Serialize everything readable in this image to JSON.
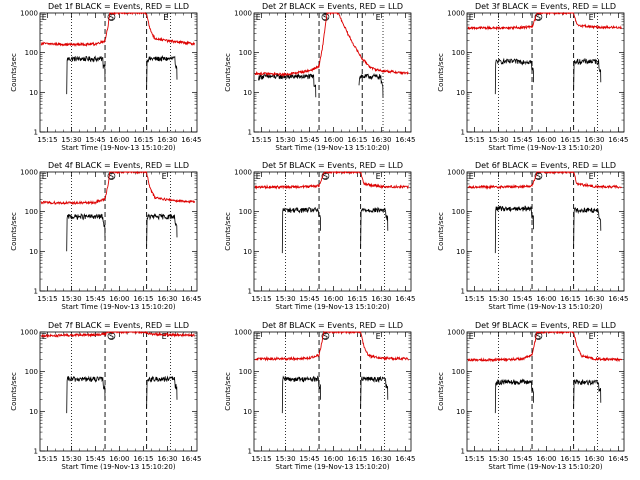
{
  "figure": {
    "start_time_label": "Start Time (19-Nov-13 15:10:20)",
    "y_axis_label": "Counts/sec",
    "colors": {
      "events": "#000000",
      "lld": "#dd0000",
      "axes": "#000000"
    }
  },
  "chart_data": [
    {
      "type": "line",
      "title": "Det 1f BLACK = Events, RED = LLD",
      "xlabel": "Start Time (19-Nov-13 15:10:20)",
      "ylabel": "Counts/sec",
      "yscale": "log",
      "ylim": [
        1,
        1000
      ],
      "x_tick_labels": [
        "15:15",
        "15:30",
        "15:45",
        "16:00",
        "16:15",
        "16:30",
        "16:45"
      ],
      "markers": [
        {
          "label": "E",
          "time": "15:13"
        },
        {
          "label": "S",
          "time": "15:55"
        },
        {
          "label": "E",
          "time": "16:29"
        }
      ],
      "dotted_lines": [
        "15:30",
        "16:32"
      ],
      "dashed_lines": [
        "15:51",
        "16:17"
      ],
      "series": [
        {
          "name": "Events",
          "color": "#000000",
          "segments": [
            {
              "start": "15:27",
              "end": "15:51",
              "base": 70,
              "spike": 9
            },
            {
              "start": "16:17",
              "end": "16:36",
              "base": 70,
              "spike": 12
            }
          ]
        },
        {
          "name": "LLD",
          "color": "#dd0000",
          "points": [
            [
              "15:11",
              170
            ],
            [
              "15:30",
              160
            ],
            [
              "15:45",
              165
            ],
            [
              "15:51",
              200
            ],
            [
              "15:53",
              500
            ],
            [
              "15:54",
              1000
            ],
            [
              "16:17",
              1000
            ],
            [
              "16:19",
              400
            ],
            [
              "16:22",
              230
            ],
            [
              "16:30",
              200
            ],
            [
              "16:45",
              170
            ],
            [
              "16:47",
              170
            ]
          ]
        }
      ]
    },
    {
      "type": "line",
      "title": "Det 2f BLACK = Events, RED = LLD",
      "xlabel": "Start Time (19-Nov-13 15:10:20)",
      "ylabel": "Counts/sec",
      "yscale": "log",
      "ylim": [
        1,
        1000
      ],
      "x_tick_labels": [
        "15:15",
        "15:30",
        "15:45",
        "16:00",
        "16:15",
        "16:30",
        "16:45"
      ],
      "markers": [
        {
          "label": "E",
          "time": "15:13"
        },
        {
          "label": "S",
          "time": "15:55"
        },
        {
          "label": "E",
          "time": "16:28"
        }
      ],
      "dotted_lines": [
        "15:30",
        "16:31"
      ],
      "dashed_lines": [
        "15:51",
        "16:18"
      ],
      "series": [
        {
          "name": "Events",
          "color": "#000000",
          "segments": [
            {
              "start": "15:13",
              "end": "15:49",
              "base": 25,
              "spike": 20
            },
            {
              "start": "16:16",
              "end": "16:31",
              "base": 25,
              "spike": 15
            }
          ]
        },
        {
          "name": "LLD",
          "color": "#dd0000",
          "points": [
            [
              "15:11",
              30
            ],
            [
              "15:30",
              28
            ],
            [
              "15:45",
              35
            ],
            [
              "15:51",
              45
            ],
            [
              "15:53",
              120
            ],
            [
              "15:56",
              1000
            ],
            [
              "16:03",
              1000
            ],
            [
              "16:09",
              300
            ],
            [
              "16:13",
              150
            ],
            [
              "16:18",
              70
            ],
            [
              "16:24",
              40
            ],
            [
              "16:30",
              35
            ],
            [
              "16:47",
              30
            ]
          ]
        }
      ]
    },
    {
      "type": "line",
      "title": "Det 3f BLACK = Events, RED = LLD",
      "xlabel": "Start Time (19-Nov-13 15:10:20)",
      "ylabel": "Counts/sec",
      "yscale": "log",
      "ylim": [
        1,
        1000
      ],
      "x_tick_labels": [
        "15:15",
        "15:30",
        "15:45",
        "16:00",
        "16:15",
        "16:30",
        "16:45"
      ],
      "markers": [
        {
          "label": "E",
          "time": "15:13"
        },
        {
          "label": "S",
          "time": "15:55"
        },
        {
          "label": "E",
          "time": "16:28"
        }
      ],
      "dotted_lines": [
        "15:30",
        "16:32"
      ],
      "dashed_lines": [
        "15:51",
        "16:17"
      ],
      "series": [
        {
          "name": "Events",
          "color": "#000000",
          "segments": [
            {
              "start": "15:28",
              "end": "15:52",
              "base": 60,
              "spike": 9
            },
            {
              "start": "16:17",
              "end": "16:34",
              "base": 60,
              "spike": 11
            }
          ]
        },
        {
          "name": "LLD",
          "color": "#dd0000",
          "points": [
            [
              "15:11",
              420
            ],
            [
              "15:30",
              420
            ],
            [
              "15:45",
              430
            ],
            [
              "15:51",
              450
            ],
            [
              "15:53",
              700
            ],
            [
              "15:54",
              1000
            ],
            [
              "16:17",
              1000
            ],
            [
              "16:19",
              500
            ],
            [
              "16:30",
              440
            ],
            [
              "16:47",
              430
            ]
          ]
        }
      ]
    },
    {
      "type": "line",
      "title": "Det 4f BLACK = Events, RED = LLD",
      "xlabel": "Start Time (19-Nov-13 15:10:20)",
      "ylabel": "Counts/sec",
      "yscale": "log",
      "ylim": [
        1,
        1000
      ],
      "x_tick_labels": [
        "15:15",
        "15:30",
        "15:45",
        "16:00",
        "16:15",
        "16:30",
        "16:45"
      ],
      "markers": [
        {
          "label": "E",
          "time": "15:13"
        },
        {
          "label": "S",
          "time": "15:55"
        },
        {
          "label": "E",
          "time": "16:28"
        }
      ],
      "dotted_lines": [
        "15:30",
        "16:32"
      ],
      "dashed_lines": [
        "15:51",
        "16:17"
      ],
      "series": [
        {
          "name": "Events",
          "color": "#000000",
          "segments": [
            {
              "start": "15:27",
              "end": "15:51",
              "base": 75,
              "spike": 10
            },
            {
              "start": "16:17",
              "end": "16:36",
              "base": 75,
              "spike": 13
            }
          ]
        },
        {
          "name": "LLD",
          "color": "#dd0000",
          "points": [
            [
              "15:11",
              170
            ],
            [
              "15:30",
              165
            ],
            [
              "15:45",
              170
            ],
            [
              "15:51",
              210
            ],
            [
              "15:53",
              500
            ],
            [
              "15:54",
              1000
            ],
            [
              "16:17",
              1000
            ],
            [
              "16:19",
              400
            ],
            [
              "16:22",
              230
            ],
            [
              "16:30",
              200
            ],
            [
              "16:47",
              175
            ]
          ]
        }
      ]
    },
    {
      "type": "line",
      "title": "Det 5f BLACK = Events, RED = LLD",
      "xlabel": "Start Time (19-Nov-13 15:10:20)",
      "ylabel": "Counts/sec",
      "yscale": "log",
      "ylim": [
        1,
        1000
      ],
      "x_tick_labels": [
        "15:15",
        "15:30",
        "15:45",
        "16:00",
        "16:15",
        "16:30",
        "16:45"
      ],
      "markers": [
        {
          "label": "E",
          "time": "15:13"
        },
        {
          "label": "S",
          "time": "15:55"
        },
        {
          "label": "E",
          "time": "16:28"
        }
      ],
      "dotted_lines": [
        "15:30",
        "16:32"
      ],
      "dashed_lines": [
        "15:51",
        "16:17"
      ],
      "series": [
        {
          "name": "Events",
          "color": "#000000",
          "segments": [
            {
              "start": "15:28",
              "end": "15:52",
              "base": 110,
              "spike": 9
            },
            {
              "start": "16:17",
              "end": "16:34",
              "base": 110,
              "spike": 12
            }
          ]
        },
        {
          "name": "LLD",
          "color": "#dd0000",
          "points": [
            [
              "15:11",
              420
            ],
            [
              "15:30",
              420
            ],
            [
              "15:45",
              430
            ],
            [
              "15:51",
              450
            ],
            [
              "15:53",
              700
            ],
            [
              "15:54",
              1000
            ],
            [
              "16:17",
              1000
            ],
            [
              "16:19",
              500
            ],
            [
              "16:30",
              430
            ],
            [
              "16:47",
              420
            ]
          ]
        }
      ]
    },
    {
      "type": "line",
      "title": "Det 6f BLACK = Events, RED = LLD",
      "xlabel": "Start Time (19-Nov-13 15:10:20)",
      "ylabel": "Counts/sec",
      "yscale": "log",
      "ylim": [
        1,
        1000
      ],
      "x_tick_labels": [
        "15:15",
        "15:30",
        "15:45",
        "16:00",
        "16:15",
        "16:30",
        "16:45"
      ],
      "markers": [
        {
          "label": "E",
          "time": "15:13"
        },
        {
          "label": "S",
          "time": "15:55"
        },
        {
          "label": "E",
          "time": "16:28"
        }
      ],
      "dotted_lines": [
        "15:30",
        "16:32"
      ],
      "dashed_lines": [
        "15:51",
        "16:17"
      ],
      "series": [
        {
          "name": "Events",
          "color": "#000000",
          "segments": [
            {
              "start": "15:28",
              "end": "15:52",
              "base": 120,
              "spike": 9
            },
            {
              "start": "16:17",
              "end": "16:34",
              "base": 110,
              "spike": 12
            }
          ]
        },
        {
          "name": "LLD",
          "color": "#dd0000",
          "points": [
            [
              "15:11",
              420
            ],
            [
              "15:30",
              420
            ],
            [
              "15:45",
              430
            ],
            [
              "15:51",
              450
            ],
            [
              "15:53",
              700
            ],
            [
              "15:54",
              1000
            ],
            [
              "16:17",
              1000
            ],
            [
              "16:19",
              500
            ],
            [
              "16:30",
              430
            ],
            [
              "16:47",
              420
            ]
          ]
        }
      ]
    },
    {
      "type": "line",
      "title": "Det 7f BLACK = Events, RED = LLD",
      "xlabel": "Start Time (19-Nov-13 15:10:20)",
      "ylabel": "Counts/sec",
      "yscale": "log",
      "ylim": [
        1,
        1000
      ],
      "x_tick_labels": [
        "15:15",
        "15:30",
        "15:45",
        "16:00",
        "16:15",
        "16:30",
        "16:45"
      ],
      "markers": [
        {
          "label": "E",
          "time": "15:13"
        },
        {
          "label": "S",
          "time": "15:55"
        },
        {
          "label": "E",
          "time": "16:28"
        }
      ],
      "dotted_lines": [
        "15:30",
        "16:32"
      ],
      "dashed_lines": [
        "15:51",
        "16:17"
      ],
      "series": [
        {
          "name": "Events",
          "color": "#000000",
          "segments": [
            {
              "start": "15:27",
              "end": "15:51",
              "base": 65,
              "spike": 9
            },
            {
              "start": "16:17",
              "end": "16:36",
              "base": 65,
              "spike": 12
            }
          ]
        },
        {
          "name": "LLD",
          "color": "#dd0000",
          "points": [
            [
              "15:11",
              800
            ],
            [
              "15:30",
              830
            ],
            [
              "15:45",
              850
            ],
            [
              "15:51",
              880
            ],
            [
              "15:53",
              1000
            ],
            [
              "16:17",
              1000
            ],
            [
              "16:19",
              880
            ],
            [
              "16:30",
              850
            ],
            [
              "16:47",
              830
            ]
          ]
        }
      ]
    },
    {
      "type": "line",
      "title": "Det 8f BLACK = Events, RED = LLD",
      "xlabel": "Start Time (19-Nov-13 15:10:20)",
      "ylabel": "Counts/sec",
      "yscale": "log",
      "ylim": [
        1,
        1000
      ],
      "x_tick_labels": [
        "15:15",
        "15:30",
        "15:45",
        "16:00",
        "16:15",
        "16:30",
        "16:45"
      ],
      "markers": [
        {
          "label": "E",
          "time": "15:13"
        },
        {
          "label": "S",
          "time": "15:55"
        },
        {
          "label": "E",
          "time": "16:28"
        }
      ],
      "dotted_lines": [
        "15:30",
        "16:32"
      ],
      "dashed_lines": [
        "15:51",
        "16:17"
      ],
      "series": [
        {
          "name": "Events",
          "color": "#000000",
          "segments": [
            {
              "start": "15:28",
              "end": "15:52",
              "base": 65,
              "spike": 9
            },
            {
              "start": "16:17",
              "end": "16:34",
              "base": 65,
              "spike": 12
            }
          ]
        },
        {
          "name": "LLD",
          "color": "#dd0000",
          "points": [
            [
              "15:11",
              210
            ],
            [
              "15:30",
              210
            ],
            [
              "15:45",
              220
            ],
            [
              "15:51",
              260
            ],
            [
              "15:53",
              600
            ],
            [
              "15:54",
              1000
            ],
            [
              "16:17",
              1000
            ],
            [
              "16:19",
              450
            ],
            [
              "16:22",
              250
            ],
            [
              "16:30",
              220
            ],
            [
              "16:47",
              210
            ]
          ]
        }
      ]
    },
    {
      "type": "line",
      "title": "Det 9f BLACK = Events, RED = LLD",
      "xlabel": "Start Time (19-Nov-13 15:10:20)",
      "ylabel": "Counts/sec",
      "yscale": "log",
      "ylim": [
        1,
        1000
      ],
      "x_tick_labels": [
        "15:15",
        "15:30",
        "15:45",
        "16:00",
        "16:15",
        "16:30",
        "16:45"
      ],
      "markers": [
        {
          "label": "E",
          "time": "15:13"
        },
        {
          "label": "S",
          "time": "15:55"
        },
        {
          "label": "E",
          "time": "16:28"
        }
      ],
      "dotted_lines": [
        "15:30",
        "16:32"
      ],
      "dashed_lines": [
        "15:51",
        "16:17"
      ],
      "series": [
        {
          "name": "Events",
          "color": "#000000",
          "segments": [
            {
              "start": "15:28",
              "end": "15:52",
              "base": 55,
              "spike": 9
            },
            {
              "start": "16:17",
              "end": "16:34",
              "base": 55,
              "spike": 12
            }
          ]
        },
        {
          "name": "LLD",
          "color": "#dd0000",
          "points": [
            [
              "15:11",
              200
            ],
            [
              "15:30",
              200
            ],
            [
              "15:45",
              210
            ],
            [
              "15:51",
              260
            ],
            [
              "15:53",
              600
            ],
            [
              "15:54",
              1000
            ],
            [
              "16:17",
              1000
            ],
            [
              "16:19",
              450
            ],
            [
              "16:22",
              250
            ],
            [
              "16:30",
              210
            ],
            [
              "16:47",
              200
            ]
          ]
        }
      ]
    }
  ]
}
